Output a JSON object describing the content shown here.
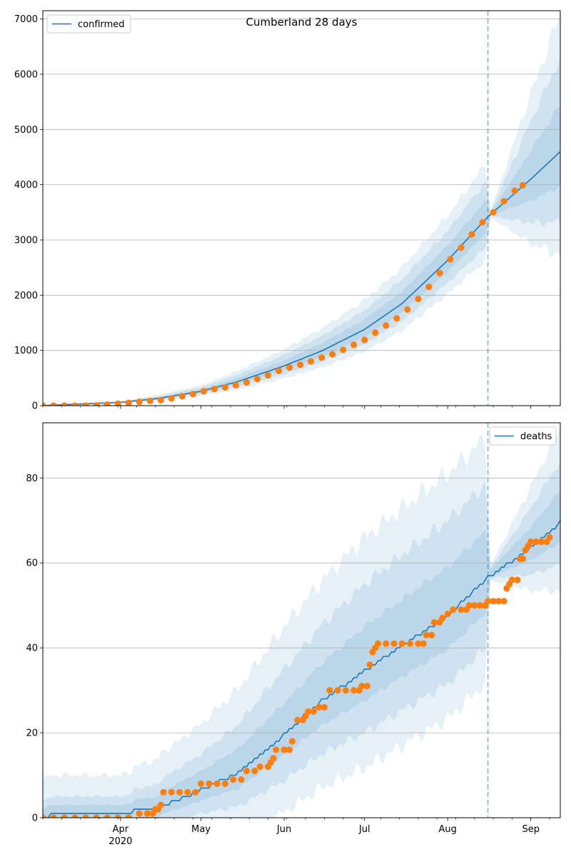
{
  "chart_data": [
    {
      "type": "line",
      "title": "Cumberland 28 days",
      "xlabel": "",
      "ylabel": "",
      "ylim": [
        0,
        7150
      ],
      "yticks": [
        0,
        1000,
        2000,
        3000,
        4000,
        5000,
        6000,
        7000
      ],
      "xticks": [
        {
          "date": "2020-04-01",
          "label": "Apr",
          "sublabel": "2020"
        },
        {
          "date": "2020-05-01",
          "label": "May",
          "sublabel": ""
        },
        {
          "date": "2020-06-01",
          "label": "Jun",
          "sublabel": ""
        },
        {
          "date": "2020-07-01",
          "label": "Jul",
          "sublabel": ""
        },
        {
          "date": "2020-08-01",
          "label": "Aug",
          "sublabel": ""
        },
        {
          "date": "2020-09-01",
          "label": "Sep",
          "sublabel": ""
        }
      ],
      "grid": "horizontal",
      "legend": {
        "position": "top-left",
        "label": "confirmed"
      },
      "forecast_start": "2020-08-16",
      "colors": {
        "line": "#1f77b4",
        "points": "#ff7f0e",
        "band": "#1f77b4"
      },
      "fit": {
        "points": [
          [
            "2020-03-03",
            0
          ],
          [
            "2020-04-01",
            60
          ],
          [
            "2020-04-15",
            130
          ],
          [
            "2020-05-01",
            260
          ],
          [
            "2020-05-15",
            440
          ],
          [
            "2020-06-01",
            720
          ],
          [
            "2020-06-15",
            990
          ],
          [
            "2020-07-01",
            1380
          ],
          [
            "2020-07-15",
            1850
          ],
          [
            "2020-08-01",
            2630
          ],
          [
            "2020-08-16",
            3420
          ],
          [
            "2020-09-01",
            4100
          ],
          [
            "2020-09-12",
            4600
          ]
        ],
        "band_widths": [
          [
            [
              "2020-04-01",
              20
            ],
            [
              "2020-05-01",
              110
            ],
            [
              "2020-06-01",
              300
            ],
            [
              "2020-07-01",
              530
            ],
            [
              "2020-08-01",
              810
            ],
            [
              "2020-08-15",
              1000
            ],
            [
              "2020-08-17",
              70
            ],
            [
              "2020-09-01",
              1550
            ],
            [
              "2020-09-12",
              2500
            ]
          ],
          [
            [
              "2020-04-01",
              12
            ],
            [
              "2020-05-01",
              70
            ],
            [
              "2020-06-01",
              200
            ],
            [
              "2020-07-01",
              350
            ],
            [
              "2020-08-01",
              540
            ],
            [
              "2020-08-15",
              680
            ],
            [
              "2020-08-17",
              40
            ],
            [
              "2020-09-01",
              1050
            ],
            [
              "2020-09-12",
              1700
            ]
          ],
          [
            [
              "2020-04-01",
              6
            ],
            [
              "2020-05-01",
              35
            ],
            [
              "2020-06-01",
              100
            ],
            [
              "2020-07-01",
              180
            ],
            [
              "2020-08-01",
              270
            ],
            [
              "2020-08-15",
              340
            ],
            [
              "2020-08-17",
              20
            ],
            [
              "2020-09-01",
              520
            ],
            [
              "2020-09-12",
              850
            ]
          ]
        ]
      },
      "observed": [
        [
          "2020-03-03",
          0
        ],
        [
          "2020-03-07",
          0
        ],
        [
          "2020-03-11",
          0
        ],
        [
          "2020-03-15",
          0
        ],
        [
          "2020-03-19",
          0
        ],
        [
          "2020-03-23",
          5
        ],
        [
          "2020-03-27",
          20
        ],
        [
          "2020-03-31",
          35
        ],
        [
          "2020-04-04",
          50
        ],
        [
          "2020-04-08",
          70
        ],
        [
          "2020-04-12",
          85
        ],
        [
          "2020-04-16",
          100
        ],
        [
          "2020-04-20",
          130
        ],
        [
          "2020-04-24",
          170
        ],
        [
          "2020-04-28",
          210
        ],
        [
          "2020-05-02",
          260
        ],
        [
          "2020-05-06",
          300
        ],
        [
          "2020-05-10",
          330
        ],
        [
          "2020-05-14",
          370
        ],
        [
          "2020-05-18",
          420
        ],
        [
          "2020-05-22",
          480
        ],
        [
          "2020-05-26",
          550
        ],
        [
          "2020-05-30",
          630
        ],
        [
          "2020-06-03",
          690
        ],
        [
          "2020-06-07",
          740
        ],
        [
          "2020-06-11",
          800
        ],
        [
          "2020-06-15",
          870
        ],
        [
          "2020-06-19",
          930
        ],
        [
          "2020-06-23",
          1010
        ],
        [
          "2020-06-27",
          1100
        ],
        [
          "2020-07-01",
          1190
        ],
        [
          "2020-07-05",
          1320
        ],
        [
          "2020-07-09",
          1450
        ],
        [
          "2020-07-13",
          1580
        ],
        [
          "2020-07-17",
          1740
        ],
        [
          "2020-07-21",
          1930
        ],
        [
          "2020-07-25",
          2150
        ],
        [
          "2020-07-29",
          2400
        ],
        [
          "2020-08-02",
          2650
        ],
        [
          "2020-08-06",
          2860
        ],
        [
          "2020-08-10",
          3100
        ],
        [
          "2020-08-14",
          3320
        ],
        [
          "2020-08-18",
          3500
        ],
        [
          "2020-08-22",
          3700
        ],
        [
          "2020-08-26",
          3890
        ],
        [
          "2020-08-29",
          3990
        ]
      ]
    },
    {
      "type": "line",
      "title": "",
      "xlabel": "",
      "ylabel": "",
      "ylim": [
        0,
        93
      ],
      "yticks": [
        0,
        20,
        40,
        60,
        80
      ],
      "xticks": [
        {
          "date": "2020-04-01",
          "label": "Apr",
          "sublabel": "2020"
        },
        {
          "date": "2020-05-01",
          "label": "May",
          "sublabel": ""
        },
        {
          "date": "2020-06-01",
          "label": "Jun",
          "sublabel": ""
        },
        {
          "date": "2020-07-01",
          "label": "Jul",
          "sublabel": ""
        },
        {
          "date": "2020-08-01",
          "label": "Aug",
          "sublabel": ""
        },
        {
          "date": "2020-09-01",
          "label": "Sep",
          "sublabel": ""
        }
      ],
      "grid": "horizontal",
      "legend": {
        "position": "top-right",
        "label": "deaths"
      },
      "forecast_start": "2020-08-16",
      "colors": {
        "line": "#1f77b4",
        "points": "#ff7f0e",
        "band": "#1f77b4"
      },
      "fit": {
        "points": [
          [
            "2020-03-03",
            0
          ],
          [
            "2020-03-06",
            1
          ],
          [
            "2020-04-05",
            1
          ],
          [
            "2020-04-06",
            2
          ],
          [
            "2020-04-15",
            2
          ],
          [
            "2020-04-16",
            3
          ],
          [
            "2020-05-01",
            7
          ],
          [
            "2020-05-15",
            11
          ],
          [
            "2020-06-01",
            20
          ],
          [
            "2020-06-15",
            28
          ],
          [
            "2020-07-01",
            35
          ],
          [
            "2020-07-15",
            41
          ],
          [
            "2020-08-01",
            48
          ],
          [
            "2020-08-16",
            57
          ],
          [
            "2020-09-01",
            64
          ],
          [
            "2020-09-12",
            70
          ]
        ],
        "band_widths": [
          [
            [
              "2020-03-03",
              9
            ],
            [
              "2020-04-01",
              9
            ],
            [
              "2020-05-01",
              15
            ],
            [
              "2020-06-01",
              25
            ],
            [
              "2020-07-01",
              31
            ],
            [
              "2020-08-01",
              33
            ],
            [
              "2020-08-15",
              33
            ],
            [
              "2020-08-17",
              2
            ],
            [
              "2020-09-01",
              14
            ],
            [
              "2020-09-12",
              22
            ]
          ],
          [
            [
              "2020-03-03",
              4
            ],
            [
              "2020-04-01",
              4
            ],
            [
              "2020-05-01",
              8
            ],
            [
              "2020-06-01",
              15
            ],
            [
              "2020-07-01",
              20
            ],
            [
              "2020-08-01",
              22
            ],
            [
              "2020-08-15",
              22
            ],
            [
              "2020-08-17",
              1.5
            ],
            [
              "2020-09-01",
              9
            ],
            [
              "2020-09-12",
              14
            ]
          ],
          [
            [
              "2020-03-03",
              2
            ],
            [
              "2020-04-01",
              2
            ],
            [
              "2020-05-01",
              4
            ],
            [
              "2020-06-01",
              7
            ],
            [
              "2020-07-01",
              10
            ],
            [
              "2020-08-01",
              11
            ],
            [
              "2020-08-15",
              11
            ],
            [
              "2020-08-17",
              1
            ],
            [
              "2020-09-01",
              4.5
            ],
            [
              "2020-09-12",
              7
            ]
          ]
        ]
      },
      "observed": [
        [
          "2020-03-03",
          0
        ],
        [
          "2020-03-07",
          0
        ],
        [
          "2020-03-11",
          0
        ],
        [
          "2020-03-15",
          0
        ],
        [
          "2020-03-19",
          0
        ],
        [
          "2020-03-23",
          0
        ],
        [
          "2020-03-27",
          0
        ],
        [
          "2020-03-31",
          0
        ],
        [
          "2020-04-04",
          0
        ],
        [
          "2020-04-08",
          1
        ],
        [
          "2020-04-11",
          1
        ],
        [
          "2020-04-13",
          1
        ],
        [
          "2020-04-14",
          2
        ],
        [
          "2020-04-15",
          2
        ],
        [
          "2020-04-16",
          3
        ],
        [
          "2020-04-17",
          6
        ],
        [
          "2020-04-20",
          6
        ],
        [
          "2020-04-23",
          6
        ],
        [
          "2020-04-26",
          6
        ],
        [
          "2020-04-29",
          6
        ],
        [
          "2020-05-01",
          8
        ],
        [
          "2020-05-04",
          8
        ],
        [
          "2020-05-07",
          8
        ],
        [
          "2020-05-10",
          8
        ],
        [
          "2020-05-13",
          9
        ],
        [
          "2020-05-16",
          9
        ],
        [
          "2020-05-18",
          11
        ],
        [
          "2020-05-21",
          11
        ],
        [
          "2020-05-23",
          12
        ],
        [
          "2020-05-26",
          12
        ],
        [
          "2020-05-27",
          13
        ],
        [
          "2020-05-28",
          14
        ],
        [
          "2020-05-29",
          16
        ],
        [
          "2020-06-01",
          16
        ],
        [
          "2020-06-03",
          16
        ],
        [
          "2020-06-04",
          18
        ],
        [
          "2020-06-06",
          23
        ],
        [
          "2020-06-08",
          23
        ],
        [
          "2020-06-09",
          24
        ],
        [
          "2020-06-10",
          25
        ],
        [
          "2020-06-12",
          25
        ],
        [
          "2020-06-14",
          26
        ],
        [
          "2020-06-16",
          26
        ],
        [
          "2020-06-18",
          30
        ],
        [
          "2020-06-21",
          30
        ],
        [
          "2020-06-24",
          30
        ],
        [
          "2020-06-27",
          30
        ],
        [
          "2020-06-29",
          30
        ],
        [
          "2020-06-30",
          31
        ],
        [
          "2020-07-02",
          31
        ],
        [
          "2020-07-03",
          36
        ],
        [
          "2020-07-04",
          39
        ],
        [
          "2020-07-05",
          40
        ],
        [
          "2020-07-06",
          41
        ],
        [
          "2020-07-09",
          41
        ],
        [
          "2020-07-12",
          41
        ],
        [
          "2020-07-15",
          41
        ],
        [
          "2020-07-18",
          41
        ],
        [
          "2020-07-21",
          41
        ],
        [
          "2020-07-23",
          41
        ],
        [
          "2020-07-24",
          43
        ],
        [
          "2020-07-26",
          43
        ],
        [
          "2020-07-27",
          46
        ],
        [
          "2020-07-29",
          46
        ],
        [
          "2020-07-30",
          47
        ],
        [
          "2020-08-01",
          48
        ],
        [
          "2020-08-03",
          49
        ],
        [
          "2020-08-06",
          49
        ],
        [
          "2020-08-08",
          49
        ],
        [
          "2020-08-09",
          50
        ],
        [
          "2020-08-11",
          50
        ],
        [
          "2020-08-13",
          50
        ],
        [
          "2020-08-15",
          50
        ],
        [
          "2020-08-16",
          51
        ],
        [
          "2020-08-18",
          51
        ],
        [
          "2020-08-20",
          51
        ],
        [
          "2020-08-22",
          51
        ],
        [
          "2020-08-23",
          54
        ],
        [
          "2020-08-24",
          55
        ],
        [
          "2020-08-25",
          56
        ],
        [
          "2020-08-27",
          56
        ],
        [
          "2020-08-28",
          61
        ],
        [
          "2020-08-29",
          61
        ],
        [
          "2020-08-30",
          63
        ],
        [
          "2020-08-31",
          64
        ],
        [
          "2020-09-01",
          65
        ],
        [
          "2020-09-03",
          65
        ],
        [
          "2020-09-05",
          65
        ],
        [
          "2020-09-07",
          65
        ],
        [
          "2020-09-08",
          66
        ]
      ]
    }
  ]
}
